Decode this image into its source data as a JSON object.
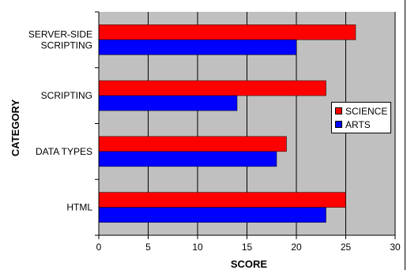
{
  "chart_data": {
    "type": "bar",
    "orientation": "horizontal",
    "categories": [
      "SERVER-SIDE SCRIPTING",
      "SCRIPTING",
      "DATA TYPES",
      "HTML"
    ],
    "category_labels": [
      [
        "SERVER-SIDE",
        "SCRIPTING"
      ],
      [
        "SCRIPTING"
      ],
      [
        "DATA TYPES"
      ],
      [
        "HTML"
      ]
    ],
    "series": [
      {
        "name": "SCIENCE",
        "color": "#ff0000",
        "values": [
          26,
          23,
          19,
          25
        ]
      },
      {
        "name": "ARTS",
        "color": "#0000ff",
        "values": [
          20,
          14,
          18,
          23
        ]
      }
    ],
    "xlabel": "SCORE",
    "ylabel": "CATEGORY",
    "xlim": [
      0,
      30
    ],
    "xticks": [
      "0",
      "5",
      "10",
      "15",
      "20",
      "25",
      "30"
    ],
    "grid": true,
    "legend_position": "right",
    "plot_background": "#c0c0c0"
  }
}
